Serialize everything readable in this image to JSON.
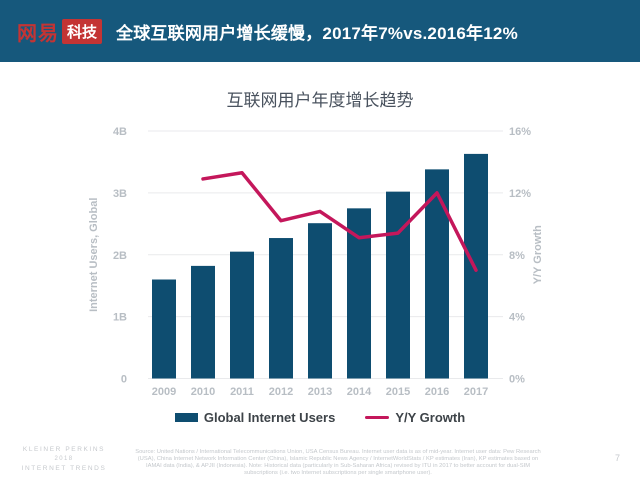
{
  "header": {
    "logo_netease": "网易",
    "logo_tech": "科技",
    "title": "全球互联网用户增长缓慢，2017年7%vs.2016年12%"
  },
  "chart_data": {
    "type": "bar+line",
    "title": "互联网用户年度增长趋势",
    "categories": [
      "2009",
      "2010",
      "2011",
      "2012",
      "2013",
      "2014",
      "2015",
      "2016",
      "2017"
    ],
    "series": [
      {
        "name": "Global Internet Users",
        "type": "bar",
        "axis": "left",
        "values": [
          1.6,
          1.82,
          2.05,
          2.27,
          2.51,
          2.75,
          3.02,
          3.38,
          3.63
        ]
      },
      {
        "name": "Y/Y Growth",
        "type": "line",
        "axis": "right",
        "values": [
          null,
          12.9,
          13.3,
          10.2,
          10.8,
          9.1,
          9.4,
          12.0,
          7.0
        ]
      }
    ],
    "left_axis": {
      "label": "Internet Users, Global",
      "max": 4,
      "tick_values": [
        0,
        1,
        2,
        3,
        4
      ],
      "tick_labels": [
        "0",
        "1B",
        "2B",
        "3B",
        "4B"
      ]
    },
    "right_axis": {
      "label": "Y/Y Growth",
      "max": 16,
      "tick_values": [
        0,
        4,
        8,
        12,
        16
      ],
      "tick_labels": [
        "0%",
        "4%",
        "8%",
        "12%",
        "16%"
      ]
    },
    "grid": true,
    "legend_position": "bottom"
  },
  "footer": {
    "brand_lines": [
      "KLEINER PERKINS",
      "2018",
      "INTERNET TRENDS"
    ],
    "source": "Source: United Nations / International Telecommunications Union, USA Census Bureau. Internet user data is as of mid-year. Internet user data: Pew Research (USA), China Internet Network Information Center (China), Islamic Republic News Agency / InternetWorldStats / KP estimates (Iran), KP estimates based on IAMAI data (India), & APJII (Indonesia). Note: Historical data (particularly in Sub-Saharan Africa) revised by ITU in 2017 to better account for dual-SIM subscriptions (i.e. two Internet subscriptions per single smartphone user).",
    "page_number": "7"
  },
  "colors": {
    "header_bg": "#16587c",
    "logo_red": "#c43434",
    "bar": "#0e4d70",
    "line": "#c4175b",
    "grid": "#e9eaec",
    "axis_text": "#b8bec4",
    "title_text": "#49525e"
  }
}
